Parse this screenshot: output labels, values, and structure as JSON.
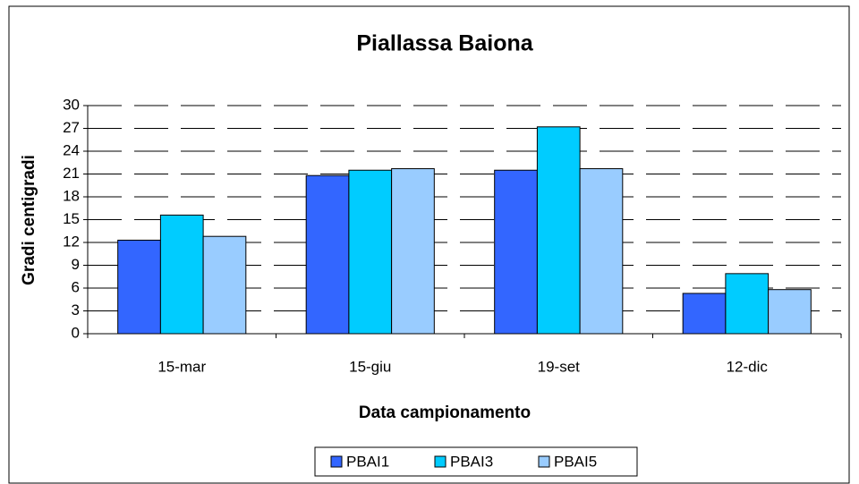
{
  "chart_data": {
    "type": "bar",
    "title": "Piallassa Baiona",
    "x_label": "Data campionamento",
    "y_label": "Gradi centigradi",
    "categories": [
      "15-mar",
      "15-giu",
      "19-set",
      "12-dic"
    ],
    "series": [
      {
        "name": "PBAI1",
        "color": "#3366ff",
        "values": [
          12.3,
          20.8,
          21.5,
          5.3
        ]
      },
      {
        "name": "PBAI3",
        "color": "#00ccff",
        "values": [
          15.6,
          21.5,
          27.2,
          7.9
        ]
      },
      {
        "name": "PBAI5",
        "color": "#99ccff",
        "values": [
          12.8,
          21.7,
          21.7,
          5.8
        ]
      }
    ],
    "ylim": [
      0,
      30
    ],
    "yticks": [
      0,
      3,
      6,
      9,
      12,
      15,
      18,
      21,
      24,
      27,
      30
    ],
    "grid": true,
    "legend": "bottom"
  }
}
